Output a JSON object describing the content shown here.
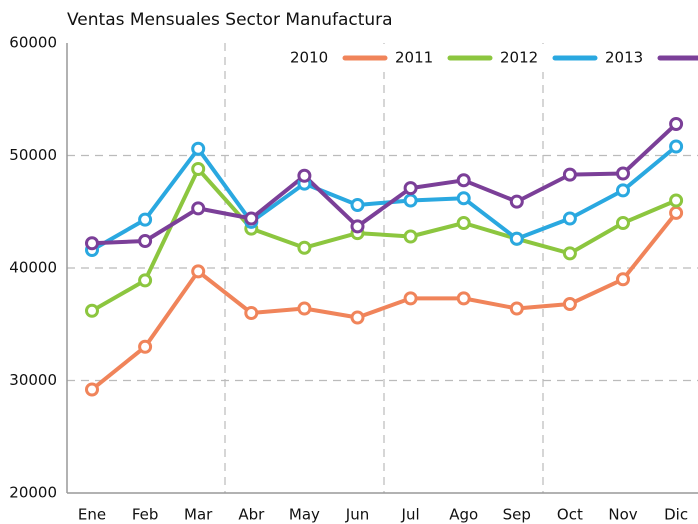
{
  "chart_data": {
    "type": "line",
    "title": "Ventas Mensuales Sector Manufactura",
    "categories": [
      "Ene",
      "Feb",
      "Mar",
      "Abr",
      "May",
      "Jun",
      "Jul",
      "Ago",
      "Sep",
      "Oct",
      "Nov",
      "Dic"
    ],
    "series": [
      {
        "name": "2010",
        "color": "#f0845a",
        "values": [
          29200,
          33000,
          39700,
          36000,
          36400,
          35600,
          37300,
          37300,
          36400,
          36800,
          39000,
          44900
        ]
      },
      {
        "name": "2011",
        "color": "#8cc63f",
        "values": [
          36200,
          38900,
          48800,
          43500,
          41800,
          43100,
          42800,
          44000,
          42600,
          41300,
          44000,
          46000
        ]
      },
      {
        "name": "2012",
        "color": "#2aa8e0",
        "values": [
          41600,
          44300,
          50600,
          44100,
          47500,
          45600,
          46000,
          46200,
          42600,
          44400,
          46900,
          50800
        ]
      },
      {
        "name": "2013",
        "color": "#7b3f98",
        "values": [
          42200,
          42400,
          45300,
          44400,
          48200,
          43700,
          47100,
          47800,
          45900,
          48300,
          48400,
          52800
        ]
      }
    ],
    "ylim": [
      20000,
      60000
    ],
    "yticks": [
      20000,
      30000,
      40000,
      50000,
      60000
    ],
    "grid": true,
    "legend": "upper right"
  }
}
